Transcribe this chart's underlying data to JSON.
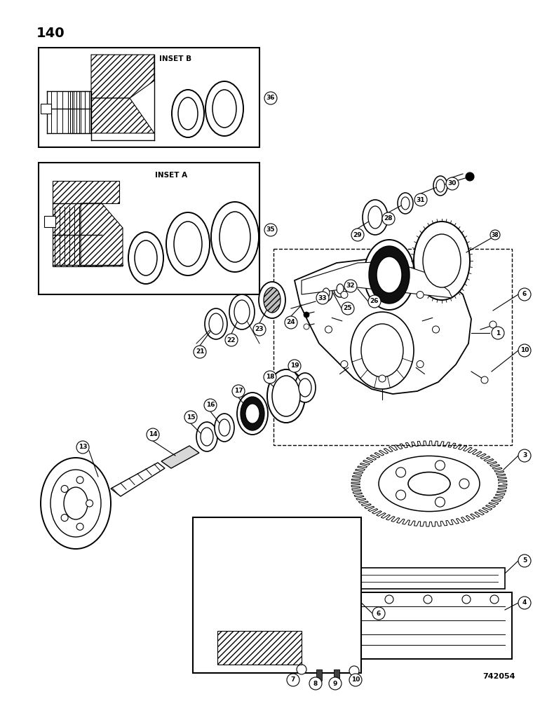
{
  "page_number": "140",
  "catalog_number": "742054",
  "bg": "#ffffff",
  "lc": "#000000",
  "figsize": [
    7.8,
    10.0
  ],
  "dpi": 100
}
